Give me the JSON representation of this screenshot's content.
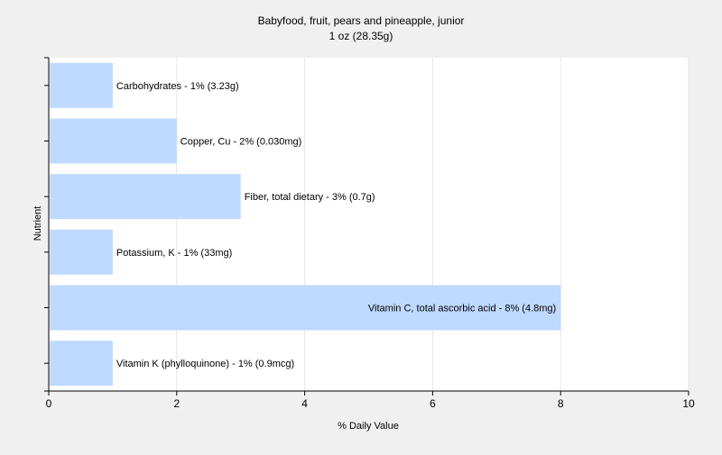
{
  "chart_data": {
    "type": "bar",
    "orientation": "horizontal",
    "title": "Babyfood, fruit, pears and pineapple, junior",
    "subtitle": "1 oz (28.35g)",
    "xlabel": "% Daily Value",
    "ylabel": "Nutrient",
    "xlim": [
      0,
      10
    ],
    "xticks": [
      0,
      2,
      4,
      6,
      8,
      10
    ],
    "grid": true,
    "legend": "none",
    "colors": {
      "bar": "#bfd9ff",
      "background": "#f0f0f0",
      "plot_background": "#ffffff",
      "grid": "#e6e6e6",
      "axis": "#000000",
      "text": "#000000"
    },
    "categories": [
      "Carbohydrates",
      "Copper, Cu",
      "Fiber, total dietary",
      "Potassium, K",
      "Vitamin C, total ascorbic acid",
      "Vitamin K (phylloquinone)"
    ],
    "values": [
      1,
      2,
      3,
      1,
      8,
      1
    ],
    "labels": [
      "Carbohydrates - 1% (3.23g)",
      "Copper, Cu - 2% (0.030mg)",
      "Fiber, total dietary - 3% (0.7g)",
      "Potassium, K - 1% (33mg)",
      "Vitamin C, total ascorbic acid - 8% (4.8mg)",
      "Vitamin K (phylloquinone) - 1% (0.9mcg)"
    ]
  }
}
